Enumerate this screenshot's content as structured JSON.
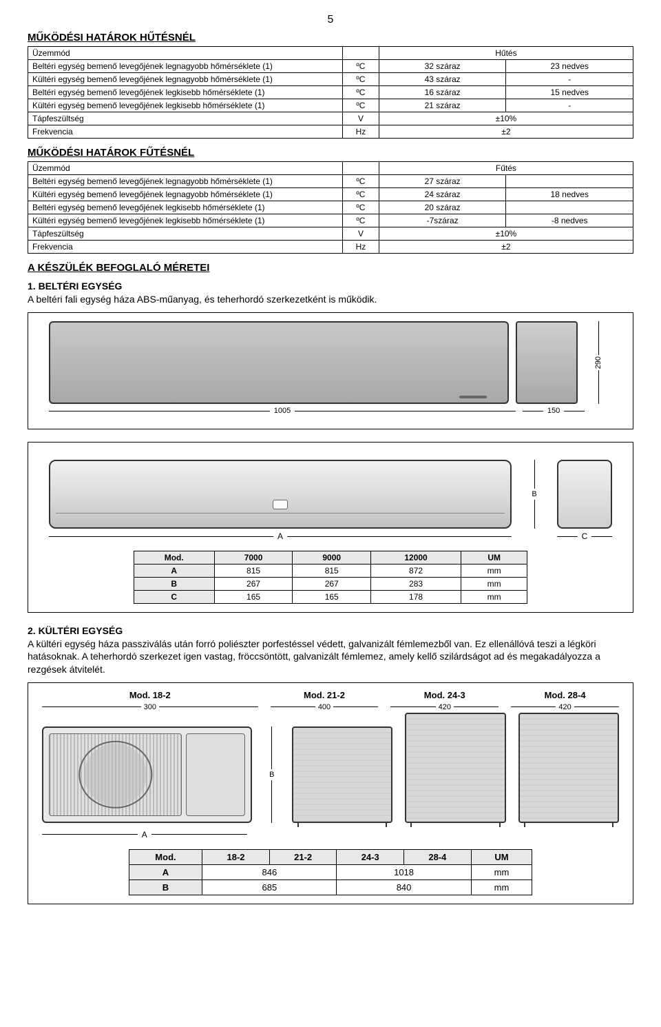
{
  "page_number": "5",
  "cooling_limits": {
    "title": "MŰKÖDÉSI HATÁROK HŰTÉSNÉL",
    "mode_label": "Üzemmód",
    "mode_value": "Hűtés",
    "rows": [
      {
        "label": "Beltéri egység bemenő levegőjének legnagyobb hőmérséklete (1)",
        "unit": "ºC",
        "v1": "32 száraz",
        "v2": "23 nedves"
      },
      {
        "label": "Kültéri egység bemenő levegőjének legnagyobb hőmérséklete (1)",
        "unit": "ºC",
        "v1": "43 száraz",
        "v2": "-"
      },
      {
        "label": "Beltéri egység bemenő levegőjének legkisebb hőmérséklete (1)",
        "unit": "ºC",
        "v1": "16 száraz",
        "v2": "15 nedves"
      },
      {
        "label": "Kültéri egység bemenő levegőjének legkisebb hőmérséklete (1)",
        "unit": "ºC",
        "v1": "21 száraz",
        "v2": "-"
      },
      {
        "label": "Tápfeszültség",
        "unit": "V",
        "v1": "±10%",
        "v2": ""
      },
      {
        "label": "Frekvencia",
        "unit": "Hz",
        "v1": "±2",
        "v2": ""
      }
    ]
  },
  "heating_limits": {
    "title": "MŰKÖDÉSI HATÁROK FŰTÉSNÉL",
    "mode_label": "Üzemmód",
    "mode_value": "Fűtés",
    "rows": [
      {
        "label": "Beltéri egység bemenő levegőjének legnagyobb hőmérséklete (1)",
        "unit": "ºC",
        "v1": "27 száraz",
        "v2": ""
      },
      {
        "label": "Kültéri egység bemenő levegőjének legnagyobb hőmérséklete (1)",
        "unit": "ºC",
        "v1": "24 száraz",
        "v2": "18 nedves"
      },
      {
        "label": "Beltéri egység bemenő levegőjének legkisebb hőmérséklete (1)",
        "unit": "ºC",
        "v1": "20 száraz",
        "v2": ""
      },
      {
        "label": "Kültéri egység bemenő levegőjének legkisebb hőmérséklete (1)",
        "unit": "ºC",
        "v1": "-7száraz",
        "v2": "-8 nedves"
      },
      {
        "label": "Tápfeszültség",
        "unit": "V",
        "v1": "±10%",
        "v2": ""
      },
      {
        "label": "Frekvencia",
        "unit": "Hz",
        "v1": "±2",
        "v2": ""
      }
    ]
  },
  "dims_title": "A KÉSZÜLÉK BEFOGLALÓ MÉRETEI",
  "indoor": {
    "title": "1. BELTÉRI EGYSÉG",
    "text": "A beltéri fali egység háza ABS-műanyag, és teherhordó szerkezetként is működik.",
    "front_width": "1005",
    "side_width": "150",
    "height": "290",
    "dim_label_B": "B",
    "dim_label_A": "A",
    "dim_label_C": "C",
    "table": {
      "columns": [
        "Mod.",
        "7000",
        "9000",
        "12000",
        "UM"
      ],
      "rows": [
        [
          "A",
          "815",
          "815",
          "872",
          "mm"
        ],
        [
          "B",
          "267",
          "267",
          "283",
          "mm"
        ],
        [
          "C",
          "165",
          "165",
          "178",
          "mm"
        ]
      ]
    }
  },
  "outdoor": {
    "title": "2. KÜLTÉRI EGYSÉG",
    "text": "A kültéri egység háza passziválás után forró poliészter porfestéssel védett, galvanizált fémlemezből van. Ez ellenállóvá teszi a légköri hatásoknak. A teherhordó szerkezet igen vastag, fröccsöntött, galvanizált fémlemez, amely kellő szilárdságot ad és megakadályozza a rezgések átvitelét.",
    "models": [
      "Mod. 18-2",
      "Mod. 21-2",
      "Mod. 24-3",
      "Mod. 28-4"
    ],
    "top_dims": [
      "300",
      "400",
      "420",
      "420"
    ],
    "v_label": "B",
    "a_label": "A",
    "table": {
      "columns": [
        "Mod.",
        "18-2",
        "21-2",
        "24-3",
        "28-4",
        "UM"
      ],
      "rows": [
        [
          "A",
          "846",
          "1018",
          "mm"
        ],
        [
          "B",
          "685",
          "840",
          "mm"
        ]
      ],
      "span1": 2,
      "span2": 2
    }
  }
}
